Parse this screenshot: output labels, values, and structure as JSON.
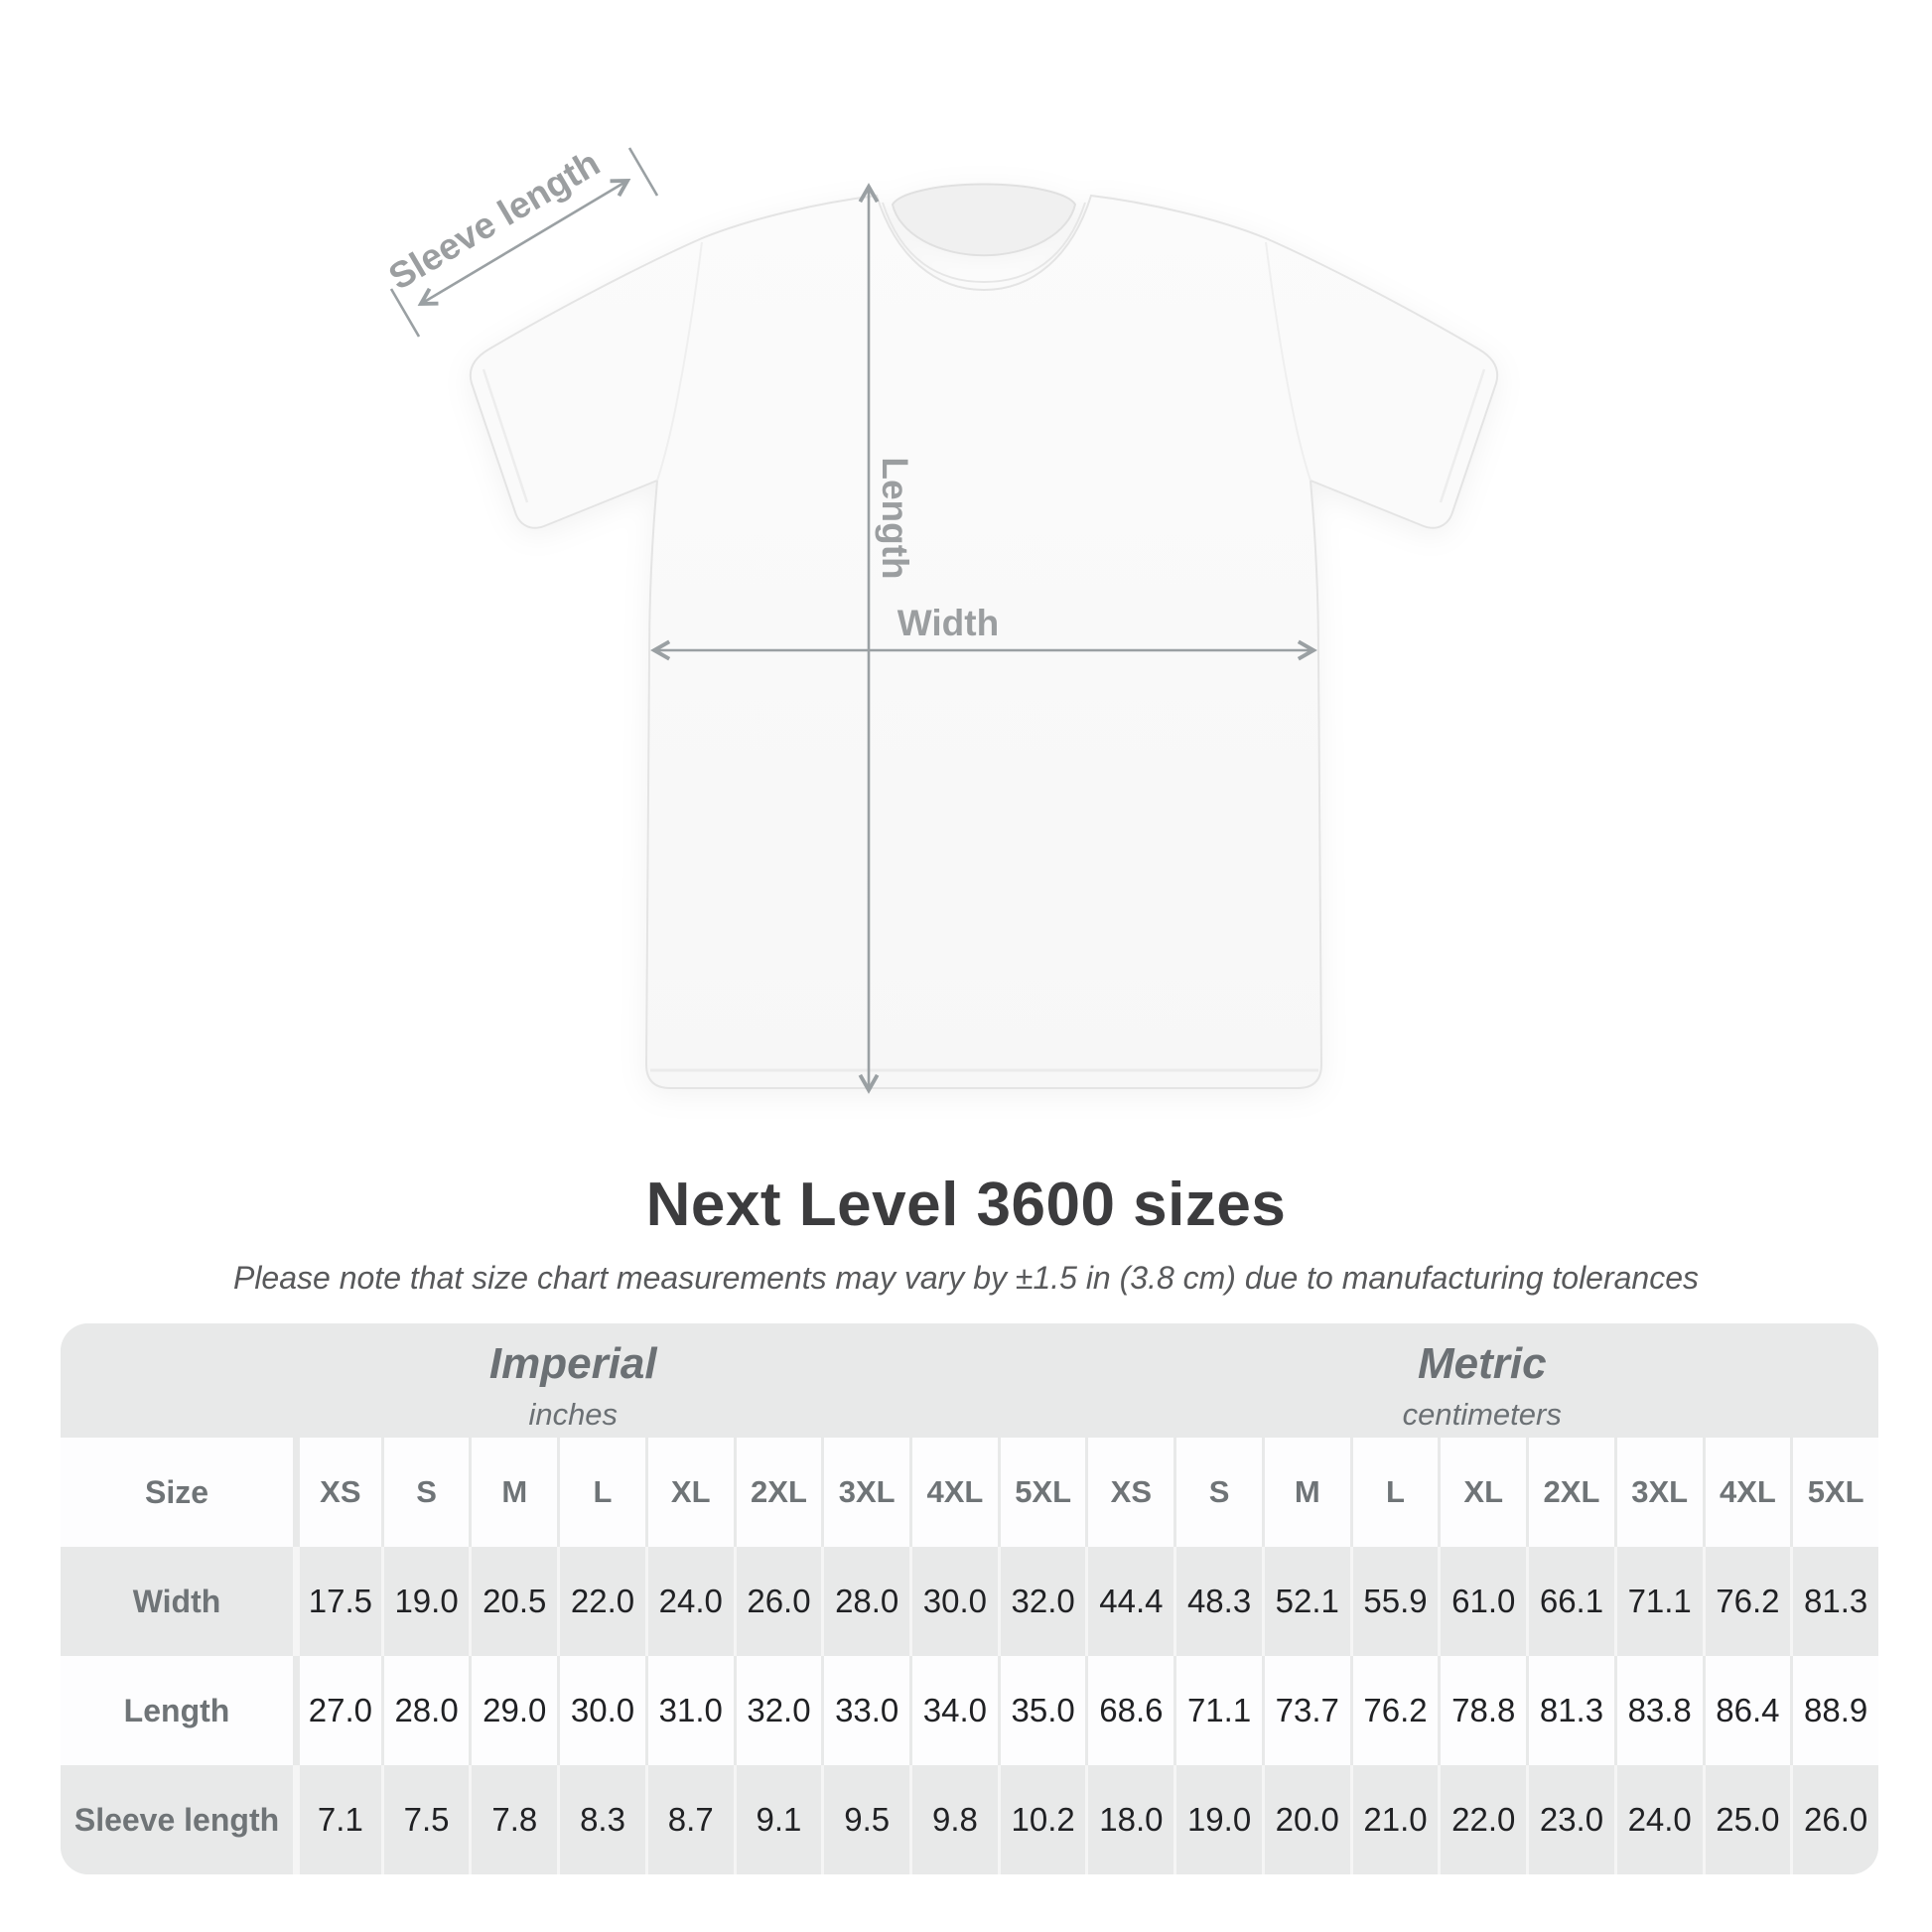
{
  "diagram": {
    "labels": {
      "sleeve_length": "Sleeve length",
      "length": "Length",
      "width": "Width"
    }
  },
  "title": "Next Level 3600 sizes",
  "subtitle": "Please note that size chart measurements may vary by ±1.5 in (3.8 cm) due to manufacturing tolerances",
  "table": {
    "unit_groups": [
      {
        "name": "Imperial",
        "unit": "inches"
      },
      {
        "name": "Metric",
        "unit": "centimeters"
      }
    ],
    "size_header_label": "Size",
    "sizes": [
      "XS",
      "S",
      "M",
      "L",
      "XL",
      "2XL",
      "3XL",
      "4XL",
      "5XL"
    ],
    "rows": [
      {
        "label": "Width",
        "imperial": [
          "17.5",
          "19.0",
          "20.5",
          "22.0",
          "24.0",
          "26.0",
          "28.0",
          "30.0",
          "32.0"
        ],
        "metric": [
          "44.4",
          "48.3",
          "52.1",
          "55.9",
          "61.0",
          "66.1",
          "71.1",
          "76.2",
          "81.3"
        ]
      },
      {
        "label": "Length",
        "imperial": [
          "27.0",
          "28.0",
          "29.0",
          "30.0",
          "31.0",
          "32.0",
          "33.0",
          "34.0",
          "35.0"
        ],
        "metric": [
          "68.6",
          "71.1",
          "73.7",
          "76.2",
          "78.8",
          "81.3",
          "83.8",
          "86.4",
          "88.9"
        ]
      },
      {
        "label": "Sleeve length",
        "imperial": [
          "7.1",
          "7.5",
          "7.8",
          "8.3",
          "8.7",
          "9.1",
          "9.5",
          "9.8",
          "10.2"
        ],
        "metric": [
          "18.0",
          "19.0",
          "20.0",
          "21.0",
          "22.0",
          "23.0",
          "24.0",
          "25.0",
          "26.0"
        ]
      }
    ]
  },
  "chart_data": {
    "type": "table",
    "title": "Next Level 3600 sizes",
    "note": "Please note that size chart measurements may vary by ±1.5 in (3.8 cm) due to manufacturing tolerances",
    "unit_groups": [
      "Imperial (inches)",
      "Metric (centimeters)"
    ],
    "columns": [
      "XS",
      "S",
      "M",
      "L",
      "XL",
      "2XL",
      "3XL",
      "4XL",
      "5XL"
    ],
    "rows": [
      {
        "measurement": "Width",
        "imperial_inches": [
          17.5,
          19.0,
          20.5,
          22.0,
          24.0,
          26.0,
          28.0,
          30.0,
          32.0
        ],
        "metric_cm": [
          44.4,
          48.3,
          52.1,
          55.9,
          61.0,
          66.1,
          71.1,
          76.2,
          81.3
        ]
      },
      {
        "measurement": "Length",
        "imperial_inches": [
          27.0,
          28.0,
          29.0,
          30.0,
          31.0,
          32.0,
          33.0,
          34.0,
          35.0
        ],
        "metric_cm": [
          68.6,
          71.1,
          73.7,
          76.2,
          78.8,
          81.3,
          83.8,
          86.4,
          88.9
        ]
      },
      {
        "measurement": "Sleeve length",
        "imperial_inches": [
          7.1,
          7.5,
          7.8,
          8.3,
          8.7,
          9.1,
          9.5,
          9.8,
          10.2
        ],
        "metric_cm": [
          18.0,
          19.0,
          20.0,
          21.0,
          22.0,
          23.0,
          24.0,
          25.0,
          26.0
        ]
      }
    ]
  },
  "colors": {
    "table_bg": "#e8e9e9",
    "row_white": "#fdfdfe",
    "measure_line": "#9aa0a3",
    "title_text": "#3c3c3e",
    "muted_text": "#6f7477",
    "value_text": "#202124"
  }
}
